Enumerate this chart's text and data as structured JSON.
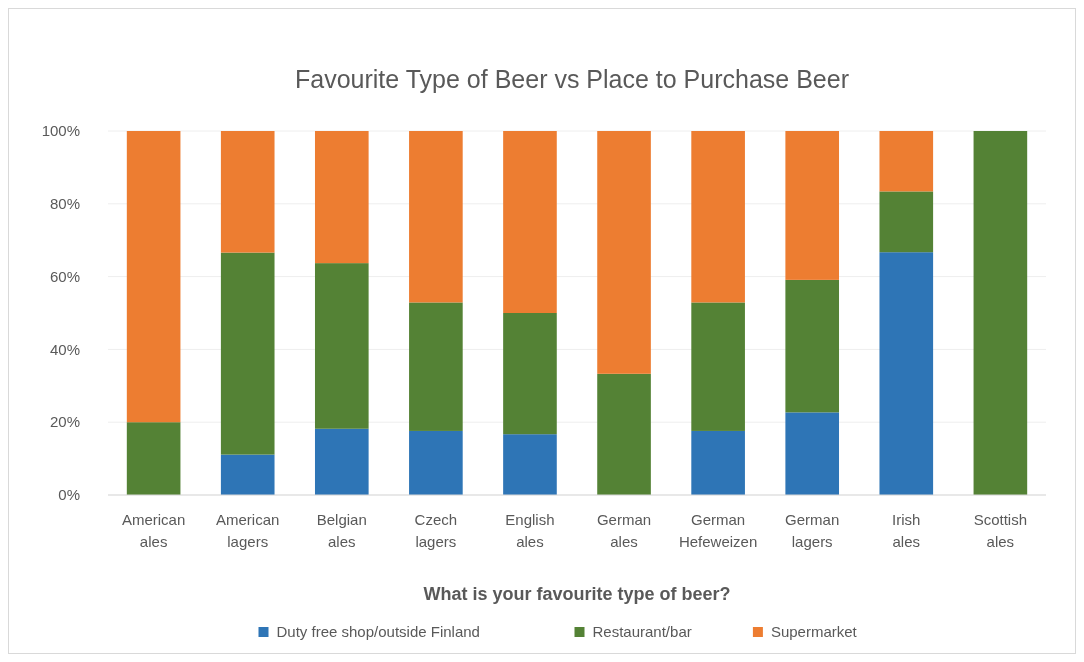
{
  "chart_data": {
    "type": "bar",
    "stacked": true,
    "title": "Favourite Type of Beer vs Place to Purchase Beer",
    "xlabel": "What is your favourite type of beer?",
    "categories": [
      "American ales",
      "American lagers",
      "Belgian ales",
      "Czech lagers",
      "English ales",
      "German ales",
      "German Hefeweizen",
      "German lagers",
      "Irish ales",
      "Scottish ales"
    ],
    "series": [
      {
        "name": "Duty free shop/outside Finland",
        "color": "#2e75b6",
        "values": [
          0,
          11.1,
          18.2,
          17.6,
          16.7,
          0,
          17.6,
          22.7,
          66.7,
          0
        ]
      },
      {
        "name": "Restaurant/bar",
        "color": "#548235",
        "values": [
          20,
          55.5,
          45.5,
          35.3,
          33.3,
          33.3,
          35.3,
          36.4,
          16.7,
          100
        ]
      },
      {
        "name": "Supermarket",
        "color": "#ed7d31",
        "values": [
          80,
          33.4,
          36.3,
          47.1,
          50,
          66.7,
          47.1,
          40.9,
          16.6,
          0
        ]
      }
    ],
    "ylim": [
      0,
      100
    ],
    "yticks": [
      {
        "value": 0,
        "label": "0%"
      },
      {
        "value": 20,
        "label": "20%"
      },
      {
        "value": 40,
        "label": "40%"
      },
      {
        "value": 60,
        "label": "60%"
      },
      {
        "value": 80,
        "label": "80%"
      },
      {
        "value": 100,
        "label": "100%"
      }
    ],
    "grid": "y",
    "legend": "bottom"
  }
}
